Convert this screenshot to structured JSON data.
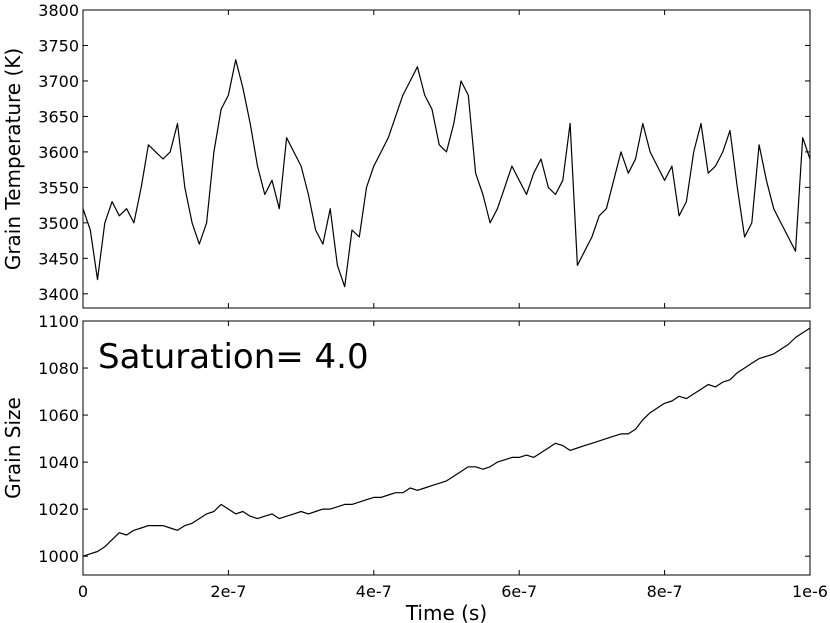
{
  "chart_data": [
    {
      "type": "line",
      "title": "",
      "xlabel": "",
      "ylabel": "Grain Temperature (K)",
      "xlim": [
        0,
        1e-06
      ],
      "ylim": [
        3380,
        3800
      ],
      "x_ticks": [
        0,
        2e-07,
        4e-07,
        6e-07,
        8e-07,
        1e-06
      ],
      "y_ticks": [
        3400,
        3450,
        3500,
        3550,
        3600,
        3650,
        3700,
        3750,
        3800
      ],
      "y_tick_labels": [
        "3400",
        "3450",
        "3500",
        "3550",
        "3600",
        "3650",
        "3700",
        "3750",
        "3800"
      ],
      "grid": false,
      "legend": "none",
      "line_color": "#000000",
      "series": [
        {
          "x": [
            0,
            1e-08,
            2e-08,
            3e-08,
            4e-08,
            5e-08,
            6e-08,
            7e-08,
            8e-08,
            9e-08,
            1e-07,
            1.1e-07,
            1.2e-07,
            1.3e-07,
            1.4e-07,
            1.5e-07,
            1.6e-07,
            1.7e-07,
            1.8e-07,
            1.9e-07,
            2e-07,
            2.1e-07,
            2.2e-07,
            2.3e-07,
            2.4e-07,
            2.5e-07,
            2.6e-07,
            2.7e-07,
            2.8e-07,
            2.9e-07,
            3e-07,
            3.1e-07,
            3.2e-07,
            3.3e-07,
            3.4e-07,
            3.5e-07,
            3.6e-07,
            3.7e-07,
            3.8e-07,
            3.9e-07,
            4e-07,
            4.1e-07,
            4.2e-07,
            4.3e-07,
            4.4e-07,
            4.5e-07,
            4.6e-07,
            4.7e-07,
            4.8e-07,
            4.9e-07,
            5e-07,
            5.1e-07,
            5.2e-07,
            5.3e-07,
            5.4e-07,
            5.5e-07,
            5.6e-07,
            5.7e-07,
            5.8e-07,
            5.9e-07,
            6e-07,
            6.1e-07,
            6.2e-07,
            6.3e-07,
            6.4e-07,
            6.5e-07,
            6.6e-07,
            6.7e-07,
            6.8e-07,
            6.9e-07,
            7e-07,
            7.1e-07,
            7.2e-07,
            7.3e-07,
            7.4e-07,
            7.5e-07,
            7.6e-07,
            7.7e-07,
            7.8e-07,
            7.9e-07,
            8e-07,
            8.1e-07,
            8.2e-07,
            8.3e-07,
            8.4e-07,
            8.5e-07,
            8.6e-07,
            8.7e-07,
            8.8e-07,
            8.9e-07,
            9e-07,
            9.1e-07,
            9.2e-07,
            9.3e-07,
            9.4e-07,
            9.5e-07,
            9.6e-07,
            9.7e-07,
            9.8e-07,
            9.9e-07,
            1e-06
          ],
          "y": [
            3520,
            3490,
            3420,
            3500,
            3530,
            3510,
            3520,
            3500,
            3550,
            3610,
            3600,
            3590,
            3600,
            3640,
            3550,
            3500,
            3470,
            3500,
            3600,
            3660,
            3680,
            3730,
            3690,
            3640,
            3580,
            3540,
            3560,
            3520,
            3620,
            3600,
            3580,
            3540,
            3490,
            3470,
            3520,
            3440,
            3410,
            3490,
            3480,
            3550,
            3580,
            3600,
            3620,
            3650,
            3680,
            3700,
            3720,
            3680,
            3660,
            3610,
            3600,
            3640,
            3700,
            3680,
            3570,
            3540,
            3500,
            3520,
            3550,
            3580,
            3560,
            3540,
            3570,
            3590,
            3550,
            3540,
            3560,
            3640,
            3440,
            3460,
            3480,
            3510,
            3520,
            3560,
            3600,
            3570,
            3590,
            3640,
            3600,
            3580,
            3560,
            3580,
            3510,
            3530,
            3600,
            3640,
            3570,
            3580,
            3600,
            3630,
            3550,
            3480,
            3500,
            3610,
            3560,
            3520,
            3500,
            3480,
            3460,
            3620,
            3590
          ]
        }
      ]
    },
    {
      "type": "line",
      "title": "",
      "xlabel": "Time (s)",
      "ylabel": "Grain Size",
      "xlim": [
        0,
        1e-06
      ],
      "ylim": [
        992,
        1100
      ],
      "x_ticks": [
        0,
        2e-07,
        4e-07,
        6e-07,
        8e-07,
        1e-06
      ],
      "x_tick_labels": [
        "0",
        "2e-7",
        "4e-7",
        "6e-7",
        "8e-7",
        "1e-6"
      ],
      "y_ticks": [
        1000,
        1020,
        1040,
        1060,
        1080,
        1100
      ],
      "y_tick_labels": [
        "1000",
        "1020",
        "1040",
        "1060",
        "1080",
        "1100"
      ],
      "grid": false,
      "legend": "none",
      "line_color": "#000000",
      "annotation": "Saturation= 4.0",
      "series": [
        {
          "x": [
            0,
            1e-08,
            2e-08,
            3e-08,
            4e-08,
            5e-08,
            6e-08,
            7e-08,
            8e-08,
            9e-08,
            1e-07,
            1.1e-07,
            1.2e-07,
            1.3e-07,
            1.4e-07,
            1.5e-07,
            1.6e-07,
            1.7e-07,
            1.8e-07,
            1.9e-07,
            2e-07,
            2.1e-07,
            2.2e-07,
            2.3e-07,
            2.4e-07,
            2.5e-07,
            2.6e-07,
            2.7e-07,
            2.8e-07,
            2.9e-07,
            3e-07,
            3.1e-07,
            3.2e-07,
            3.3e-07,
            3.4e-07,
            3.5e-07,
            3.6e-07,
            3.7e-07,
            3.8e-07,
            3.9e-07,
            4e-07,
            4.1e-07,
            4.2e-07,
            4.3e-07,
            4.4e-07,
            4.5e-07,
            4.6e-07,
            4.7e-07,
            4.8e-07,
            4.9e-07,
            5e-07,
            5.1e-07,
            5.2e-07,
            5.3e-07,
            5.4e-07,
            5.5e-07,
            5.6e-07,
            5.7e-07,
            5.8e-07,
            5.9e-07,
            6e-07,
            6.1e-07,
            6.2e-07,
            6.3e-07,
            6.4e-07,
            6.5e-07,
            6.6e-07,
            6.7e-07,
            6.8e-07,
            6.9e-07,
            7e-07,
            7.1e-07,
            7.2e-07,
            7.3e-07,
            7.4e-07,
            7.5e-07,
            7.6e-07,
            7.7e-07,
            7.8e-07,
            7.9e-07,
            8e-07,
            8.1e-07,
            8.2e-07,
            8.3e-07,
            8.4e-07,
            8.5e-07,
            8.6e-07,
            8.7e-07,
            8.8e-07,
            8.9e-07,
            9e-07,
            9.1e-07,
            9.2e-07,
            9.3e-07,
            9.4e-07,
            9.5e-07,
            9.6e-07,
            9.7e-07,
            9.8e-07,
            9.9e-07,
            1e-06
          ],
          "y": [
            1000,
            1001,
            1002,
            1004,
            1007,
            1010,
            1009,
            1011,
            1012,
            1013,
            1013,
            1013,
            1012,
            1011,
            1013,
            1014,
            1016,
            1018,
            1019,
            1022,
            1020,
            1018,
            1019,
            1017,
            1016,
            1017,
            1018,
            1016,
            1017,
            1018,
            1019,
            1018,
            1019,
            1020,
            1020,
            1021,
            1022,
            1022,
            1023,
            1024,
            1025,
            1025,
            1026,
            1027,
            1027,
            1029,
            1028,
            1029,
            1030,
            1031,
            1032,
            1034,
            1036,
            1038,
            1038,
            1037,
            1038,
            1040,
            1041,
            1042,
            1042,
            1043,
            1042,
            1044,
            1046,
            1048,
            1047,
            1045,
            1046,
            1047,
            1048,
            1049,
            1050,
            1051,
            1052,
            1052,
            1054,
            1058,
            1061,
            1063,
            1065,
            1066,
            1068,
            1067,
            1069,
            1071,
            1073,
            1072,
            1074,
            1075,
            1078,
            1080,
            1082,
            1084,
            1085,
            1086,
            1088,
            1090,
            1093,
            1095,
            1097
          ]
        }
      ]
    }
  ]
}
